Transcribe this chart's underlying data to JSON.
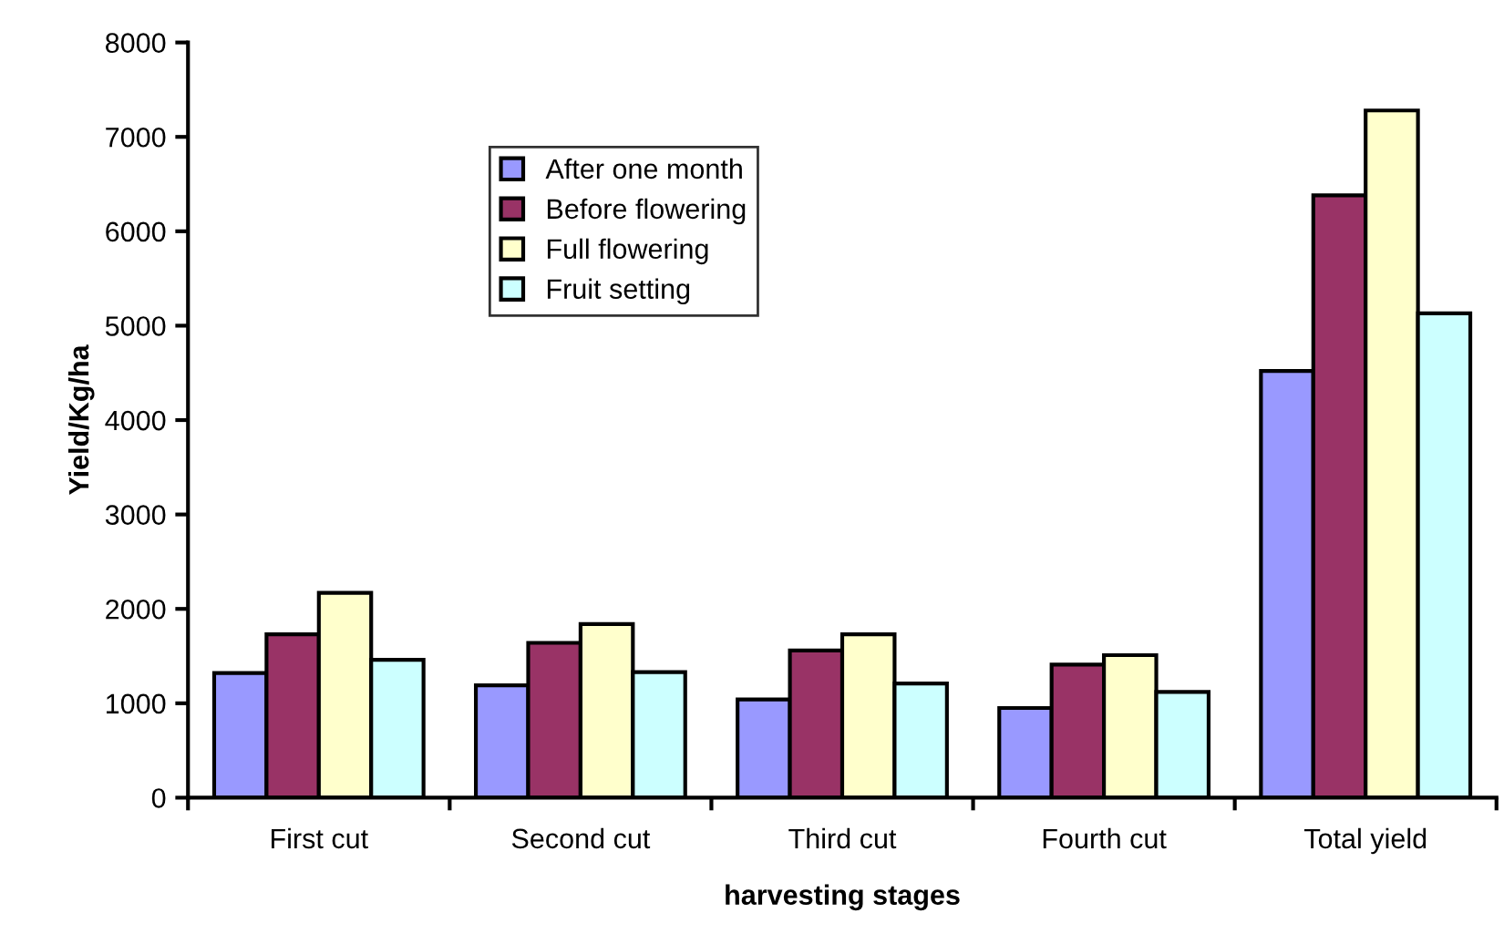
{
  "chart_data": {
    "type": "bar",
    "xlabel": "harvesting stages",
    "ylabel": "Yield/Kg/ha",
    "categories": [
      "First cut",
      "Second cut",
      "Third cut",
      "Fourth cut",
      "Total yield"
    ],
    "series": [
      {
        "name": "After one month",
        "color": "#9999ff",
        "values": [
          1320,
          1190,
          1040,
          950,
          4520
        ]
      },
      {
        "name": "Before flowering",
        "color": "#993366",
        "values": [
          1730,
          1640,
          1560,
          1410,
          6380
        ]
      },
      {
        "name": "Full flowering",
        "color": "#ffffcc",
        "values": [
          2170,
          1840,
          1730,
          1510,
          7280
        ]
      },
      {
        "name": "Fruit setting",
        "color": "#ccffff",
        "values": [
          1460,
          1330,
          1210,
          1120,
          5130
        ]
      }
    ],
    "ylim": [
      0,
      8000
    ],
    "yticks": [
      0,
      1000,
      2000,
      3000,
      4000,
      5000,
      6000,
      7000,
      8000
    ],
    "grid": false,
    "legend": "top left"
  }
}
